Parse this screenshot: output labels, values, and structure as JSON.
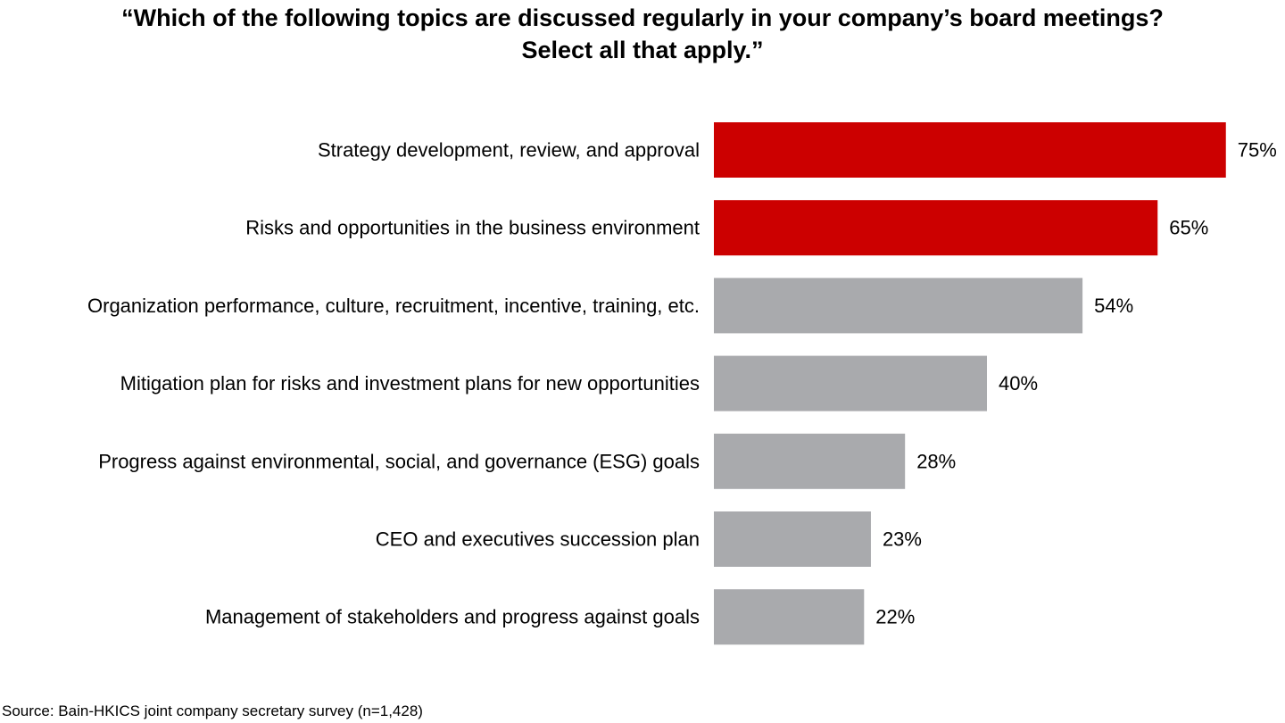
{
  "chart_data": {
    "type": "bar",
    "orientation": "horizontal",
    "title_line1": "“Which of the following topics are discussed regularly in your company’s board meetings?",
    "title_line2": "Select all that apply.”",
    "categories": [
      "Strategy development, review, and approval",
      "Risks and opportunities in the business environment",
      "Organization performance, culture, recruitment, incentive, training, etc.",
      "Mitigation plan for risks and investment plans for new opportunities",
      "Progress against environmental, social, and governance (ESG) goals",
      "CEO and executives succession plan",
      "Management of stakeholders and progress against goals"
    ],
    "values": [
      75,
      65,
      54,
      40,
      28,
      23,
      22
    ],
    "value_labels": [
      "75%",
      "65%",
      "54%",
      "40%",
      "28%",
      "23%",
      "22%"
    ],
    "bar_colors": [
      "#cc0000",
      "#cc0000",
      "#a9aaad",
      "#a9aaad",
      "#a9aaad",
      "#a9aaad",
      "#a9aaad"
    ],
    "xlim": [
      0,
      100
    ],
    "grid": false,
    "legend": "none"
  },
  "source": "Source: Bain-HKICS joint company secretary survey (n=1,428)"
}
